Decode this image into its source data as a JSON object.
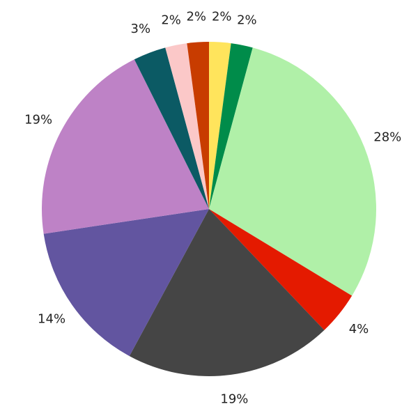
{
  "chart_data": {
    "type": "pie",
    "values": [
      2,
      2,
      28,
      4,
      19,
      14,
      19,
      3,
      2,
      2
    ],
    "value_labels": [
      "2%",
      "2%",
      "28%",
      "4%",
      "19%",
      "14%",
      "19%",
      "3%",
      "2%",
      "2%"
    ],
    "colors": [
      "#ffe45c",
      "#008c4a",
      "#b0f0a8",
      "#e41a00",
      "#454545",
      "#6255a0",
      "#be82c6",
      "#0b5a64",
      "#fbc8c8",
      "#c83c00"
    ]
  }
}
